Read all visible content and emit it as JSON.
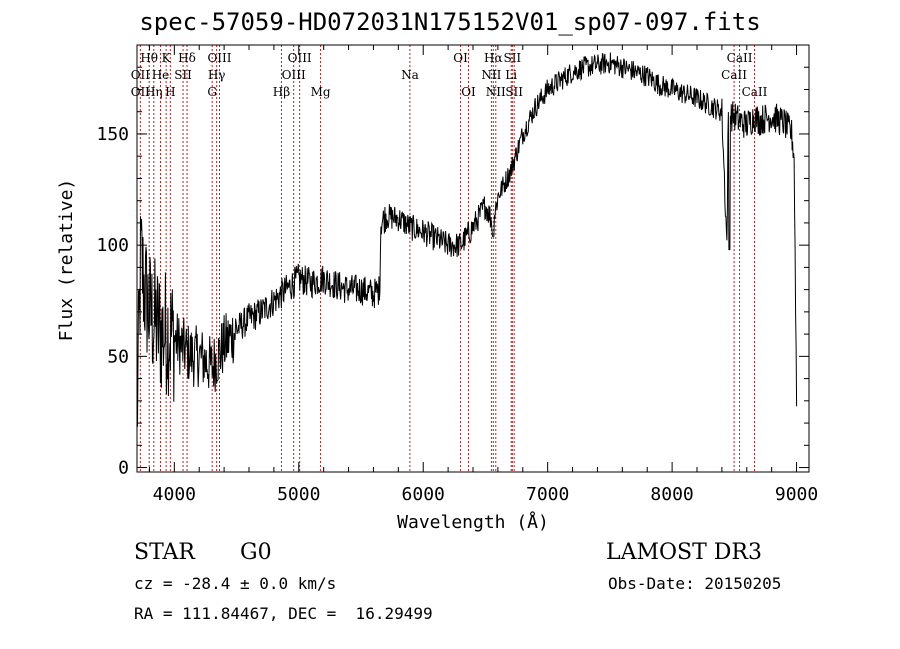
{
  "title": "spec-57059-HD072031N175152V01_sp07-097.fits",
  "info": {
    "object_type": "STAR",
    "spectral_class": "G0",
    "survey": "LAMOST DR3",
    "cz": "cz = -28.4 ± 0.0 km/s",
    "obs_date": "Obs-Date: 20150205",
    "radec": "RA = 111.84467, DEC =  16.29499"
  },
  "chart_data": {
    "type": "line",
    "xlabel": "Wavelength (Å)",
    "ylabel": "Flux (relative)",
    "xlim": [
      3700,
      9100
    ],
    "ylim": [
      -2,
      190
    ],
    "x_ticks": [
      4000,
      5000,
      6000,
      7000,
      8000,
      9000
    ],
    "y_ticks": [
      0,
      50,
      100,
      150
    ],
    "grid": false,
    "series": [
      {
        "x": [
          3700,
          3730,
          3760,
          3800,
          3850,
          3900,
          3950,
          4000,
          4050,
          4100,
          4150,
          4200,
          4250,
          4300,
          4350,
          4400,
          4500,
          4600,
          4700,
          4800,
          4900,
          5000,
          5100,
          5200,
          5300,
          5400,
          5500,
          5600,
          5650,
          5660,
          5700,
          5800,
          5900,
          6000,
          6100,
          6200,
          6300,
          6400,
          6500,
          6560,
          6600,
          6700,
          6800,
          6900,
          7000,
          7100,
          7200,
          7300,
          7400,
          7500,
          7600,
          7700,
          7800,
          7900,
          8000,
          8100,
          8200,
          8300,
          8400,
          8440,
          8450,
          8460,
          8500,
          8540,
          8600,
          8660,
          8700,
          8800,
          8900,
          8960,
          8980,
          9000
        ],
        "y": [
          20,
          95,
          80,
          70,
          65,
          60,
          62,
          58,
          55,
          52,
          50,
          50,
          48,
          45,
          50,
          55,
          62,
          67,
          70,
          75,
          80,
          85,
          83,
          85,
          82,
          80,
          80,
          78,
          80,
          110,
          113,
          112,
          108,
          106,
          103,
          100,
          100,
          108,
          118,
          110,
          122,
          133,
          150,
          162,
          170,
          174,
          178,
          180,
          181,
          182,
          180,
          178,
          176,
          172,
          170,
          168,
          166,
          163,
          160,
          100,
          155,
          158,
          158,
          156,
          154,
          158,
          156,
          158,
          155,
          150,
          140,
          30
        ]
      }
    ],
    "line_labels": [
      {
        "text": "Hθ",
        "x": 3798,
        "row": 0
      },
      {
        "text": "K",
        "x": 3934,
        "row": 0
      },
      {
        "text": "Hδ",
        "x": 4102,
        "row": 0
      },
      {
        "text": "OIII",
        "x": 4363,
        "row": 0
      },
      {
        "text": "OIII",
        "x": 5007,
        "row": 0
      },
      {
        "text": "OI",
        "x": 6300,
        "row": 0
      },
      {
        "text": "Hα",
        "x": 6563,
        "row": 0
      },
      {
        "text": "SII",
        "x": 6716,
        "row": 0
      },
      {
        "text": "CaII",
        "x": 8542,
        "row": 0
      },
      {
        "text": "OII",
        "x": 3727,
        "row": 1
      },
      {
        "text": "He",
        "x": 3889,
        "row": 1
      },
      {
        "text": "SII",
        "x": 4070,
        "row": 1
      },
      {
        "text": "Hγ",
        "x": 4340,
        "row": 1
      },
      {
        "text": "OIII",
        "x": 4959,
        "row": 1
      },
      {
        "text": "Na",
        "x": 5893,
        "row": 1
      },
      {
        "text": "NII",
        "x": 6548,
        "row": 1
      },
      {
        "text": "Li",
        "x": 6707,
        "row": 1
      },
      {
        "text": "CaII",
        "x": 8498,
        "row": 1
      },
      {
        "text": "OII",
        "x": 3727,
        "row": 2
      },
      {
        "text": "Hη",
        "x": 3835,
        "row": 2
      },
      {
        "text": "H",
        "x": 3968,
        "row": 2
      },
      {
        "text": "G",
        "x": 4304,
        "row": 2
      },
      {
        "text": "Hβ",
        "x": 4861,
        "row": 2
      },
      {
        "text": "Mg",
        "x": 5175,
        "row": 2
      },
      {
        "text": "OI",
        "x": 6364,
        "row": 2
      },
      {
        "text": "NII",
        "x": 6583,
        "row": 2
      },
      {
        "text": "SII",
        "x": 6731,
        "row": 2
      },
      {
        "text": "CaII",
        "x": 8662,
        "row": 2
      }
    ],
    "line_positions": [
      3727,
      3798,
      3835,
      3889,
      3934,
      3968,
      4070,
      4102,
      4304,
      4340,
      4363,
      4861,
      4959,
      5007,
      5175,
      5893,
      6300,
      6364,
      6548,
      6563,
      6583,
      6707,
      6716,
      6731,
      8498,
      8542,
      8662
    ]
  }
}
